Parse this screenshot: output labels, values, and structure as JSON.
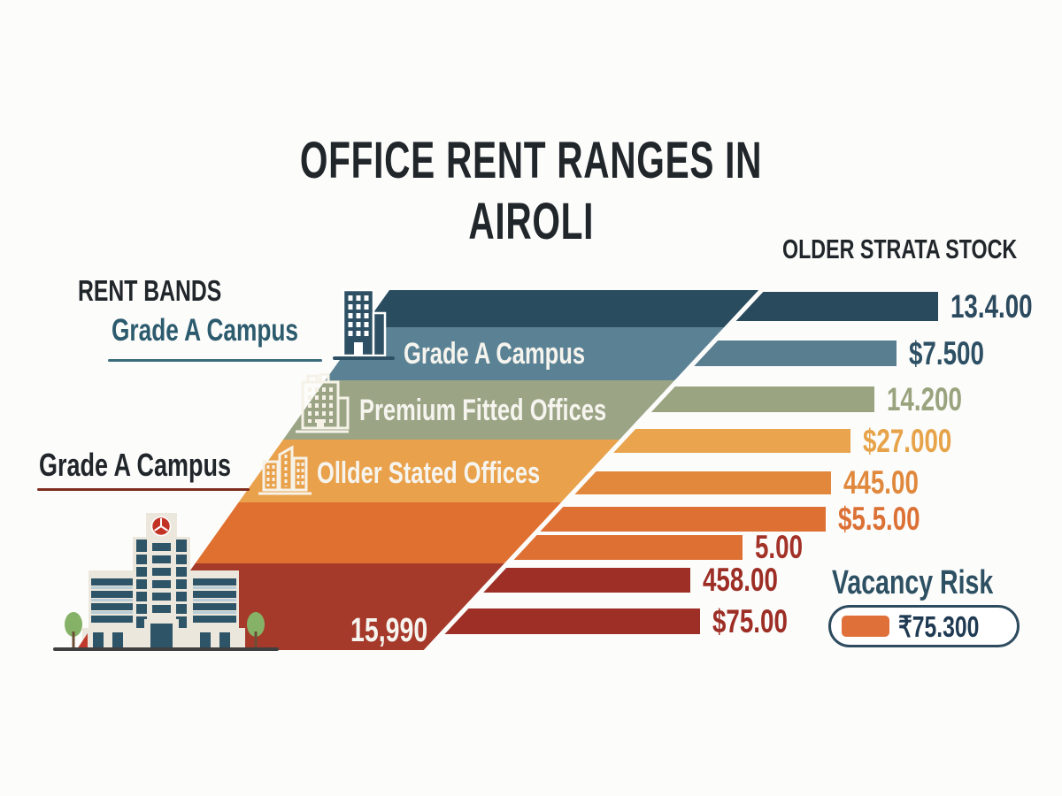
{
  "header": {
    "title_line1": "OFFICE RENT RANGES IN",
    "title_line2": "AIROLI",
    "right_column": "OLDER STRATA STOCK"
  },
  "left_panel": {
    "rent_bands": "RENT BANDS",
    "grade_a_teal": "Grade A Campus",
    "grade_a_black": "Grade A Campus"
  },
  "legend": {
    "title": "Vacancy Risk",
    "badge_value": "₹75.300"
  },
  "icons": {
    "band_1": "building-icon",
    "band_2": "building-icon",
    "band_3": "buildings-icon",
    "bottom_left": "office-building-illustration"
  },
  "colors": {
    "ink": "#21262b",
    "teal_heading": "#2d5b6e",
    "teal_underline": "#3a6b7c",
    "maroon_underline": "#7e2c1f",
    "legend_teal": "#2d5063",
    "pill_border": "#2d4b5e",
    "pill_text": "#1f3a52",
    "pill_swatch": "#e0703a",
    "band_label_text": "#f6f4ee"
  },
  "chart_data": {
    "type": "bar",
    "title": "OFFICE RENT RANGES IN AIROLI",
    "right_column_header": "OLDER STRATA STOCK",
    "legend": {
      "label": "Vacancy Risk",
      "badge": "₹75.300"
    },
    "bands": [
      {
        "label": "",
        "color": "#2a4c5f"
      },
      {
        "label": "Grade A Campus",
        "color": "#5b8294"
      },
      {
        "label": "Premium Fitted Offices",
        "color": "#9ba586"
      },
      {
        "label": "Ollder Stated Offices",
        "color": "#e9a14b"
      },
      {
        "label": "",
        "color": "#e0702f"
      },
      {
        "label": "15,990",
        "color": "#a53a2b"
      }
    ],
    "bars": [
      {
        "value": "13.4.00",
        "color": "#29495c",
        "value_color": "#2b4a5e"
      },
      {
        "value": "$7.500",
        "color": "#587e90",
        "value_color": "#2e5064"
      },
      {
        "value": "14.200",
        "color": "#9aa480",
        "value_color": "#99a37d"
      },
      {
        "value": "$27.000",
        "color": "#e9a44d",
        "value_color": "#e7a349"
      },
      {
        "value": "445.00",
        "color": "#e1883c",
        "value_color": "#e0883c"
      },
      {
        "value": "$5.5.00",
        "color": "#de7034",
        "value_color": "#dc7136"
      },
      {
        "value": "5.00",
        "color": "#de7034",
        "value_color": "#a33228"
      },
      {
        "value": "458.00",
        "color": "#9e2f26",
        "value_color": "#9d2e25"
      },
      {
        "value": "$75.00",
        "color": "#9e2f26",
        "value_color": "#9d2e25"
      }
    ]
  }
}
